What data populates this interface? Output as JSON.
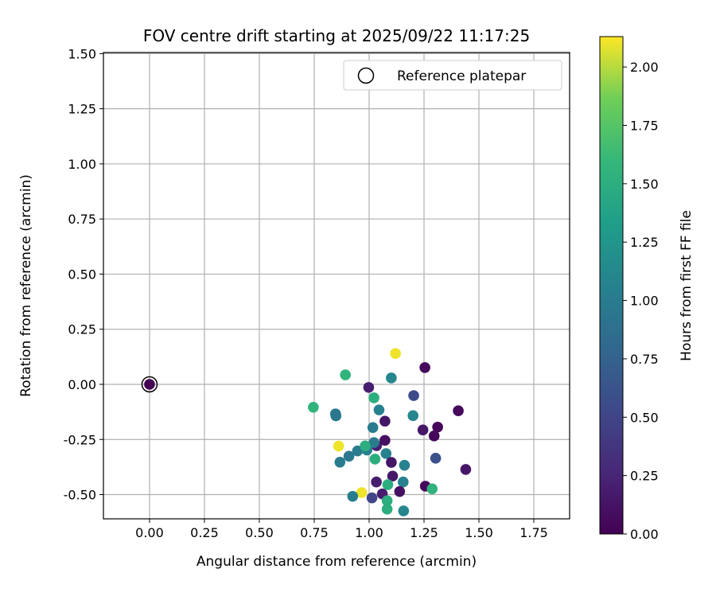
{
  "chart_data": {
    "type": "scatter",
    "title": "FOV centre drift starting at 2025/09/22 11:17:25",
    "xlabel": "Angular distance from reference (arcmin)",
    "ylabel": "Rotation from reference (arcmin)",
    "xlim": [
      -0.21,
      1.913
    ],
    "ylim": [
      -0.61,
      1.505
    ],
    "grid": true,
    "xticks": [
      "0.00",
      "0.25",
      "0.50",
      "0.75",
      "1.00",
      "1.25",
      "1.50",
      "1.75"
    ],
    "xtick_values": [
      0,
      0.25,
      0.5,
      0.75,
      1.0,
      1.25,
      1.5,
      1.75
    ],
    "yticks": [
      "-0.50",
      "-0.25",
      "0.00",
      "0.25",
      "0.50",
      "0.75",
      "1.00",
      "1.25",
      "1.50"
    ],
    "ytick_values": [
      -0.5,
      -0.25,
      0,
      0.25,
      0.5,
      0.75,
      1.0,
      1.25,
      1.5
    ],
    "legend": {
      "label": "Reference platepar",
      "placement": "top-right"
    },
    "reference_point": {
      "x": 0,
      "y": 0
    },
    "colorbar": {
      "label": "Hours from first FF file",
      "colormap": "viridis",
      "range": [
        0,
        2.13
      ],
      "ticks": [
        "0.00",
        "0.25",
        "0.50",
        "0.75",
        "1.00",
        "1.25",
        "1.50",
        "1.75",
        "2.00"
      ],
      "tick_values": [
        0,
        0.25,
        0.5,
        0.75,
        1.0,
        1.25,
        1.5,
        1.75,
        2.0
      ]
    },
    "points": [
      {
        "x": 0.0,
        "y": 0.0,
        "c": 0.0
      },
      {
        "x": 1.12,
        "y": 0.14,
        "c": 2.1
      },
      {
        "x": 1.254,
        "y": 0.076,
        "c": 0.05
      },
      {
        "x": 0.892,
        "y": 0.043,
        "c": 1.55
      },
      {
        "x": 1.101,
        "y": 0.029,
        "c": 1.1
      },
      {
        "x": 0.998,
        "y": -0.014,
        "c": 0.2
      },
      {
        "x": 1.203,
        "y": -0.051,
        "c": 0.55
      },
      {
        "x": 1.022,
        "y": -0.061,
        "c": 1.5
      },
      {
        "x": 0.746,
        "y": -0.104,
        "c": 1.55
      },
      {
        "x": 1.045,
        "y": -0.116,
        "c": 1.05
      },
      {
        "x": 1.406,
        "y": -0.12,
        "c": 0.05
      },
      {
        "x": 0.847,
        "y": -0.134,
        "c": 0.95
      },
      {
        "x": 0.849,
        "y": -0.143,
        "c": 0.95
      },
      {
        "x": 1.2,
        "y": -0.142,
        "c": 1.1
      },
      {
        "x": 1.072,
        "y": -0.167,
        "c": 0.15
      },
      {
        "x": 1.017,
        "y": -0.196,
        "c": 1.0
      },
      {
        "x": 1.312,
        "y": -0.194,
        "c": 0.05
      },
      {
        "x": 1.245,
        "y": -0.207,
        "c": 0.15
      },
      {
        "x": 1.296,
        "y": -0.234,
        "c": 0.05
      },
      {
        "x": 1.034,
        "y": -0.278,
        "c": 0.2
      },
      {
        "x": 1.072,
        "y": -0.254,
        "c": 0.1
      },
      {
        "x": 1.022,
        "y": -0.264,
        "c": 1.0
      },
      {
        "x": 0.861,
        "y": -0.28,
        "c": 2.1
      },
      {
        "x": 0.947,
        "y": -0.302,
        "c": 1.0
      },
      {
        "x": 0.99,
        "y": -0.298,
        "c": 1.05
      },
      {
        "x": 0.982,
        "y": -0.279,
        "c": 1.5
      },
      {
        "x": 0.908,
        "y": -0.326,
        "c": 0.95
      },
      {
        "x": 1.077,
        "y": -0.314,
        "c": 1.05
      },
      {
        "x": 1.027,
        "y": -0.339,
        "c": 1.5
      },
      {
        "x": 0.867,
        "y": -0.353,
        "c": 1.0
      },
      {
        "x": 1.303,
        "y": -0.335,
        "c": 0.6
      },
      {
        "x": 1.101,
        "y": -0.354,
        "c": 0.15
      },
      {
        "x": 1.161,
        "y": -0.367,
        "c": 1.05
      },
      {
        "x": 1.44,
        "y": -0.386,
        "c": 0.15
      },
      {
        "x": 1.107,
        "y": -0.416,
        "c": 0.15
      },
      {
        "x": 1.033,
        "y": -0.443,
        "c": 0.2
      },
      {
        "x": 1.155,
        "y": -0.443,
        "c": 1.05
      },
      {
        "x": 1.085,
        "y": -0.455,
        "c": 1.5
      },
      {
        "x": 1.256,
        "y": -0.462,
        "c": 0.05
      },
      {
        "x": 1.287,
        "y": -0.474,
        "c": 1.55
      },
      {
        "x": 1.139,
        "y": -0.486,
        "c": 0.1
      },
      {
        "x": 0.966,
        "y": -0.491,
        "c": 2.1
      },
      {
        "x": 1.06,
        "y": -0.497,
        "c": 0.2
      },
      {
        "x": 0.925,
        "y": -0.508,
        "c": 1.0
      },
      {
        "x": 1.013,
        "y": -0.515,
        "c": 0.5
      },
      {
        "x": 1.082,
        "y": -0.528,
        "c": 1.5
      },
      {
        "x": 1.082,
        "y": -0.566,
        "c": 1.5
      },
      {
        "x": 1.157,
        "y": -0.574,
        "c": 1.1
      }
    ]
  }
}
